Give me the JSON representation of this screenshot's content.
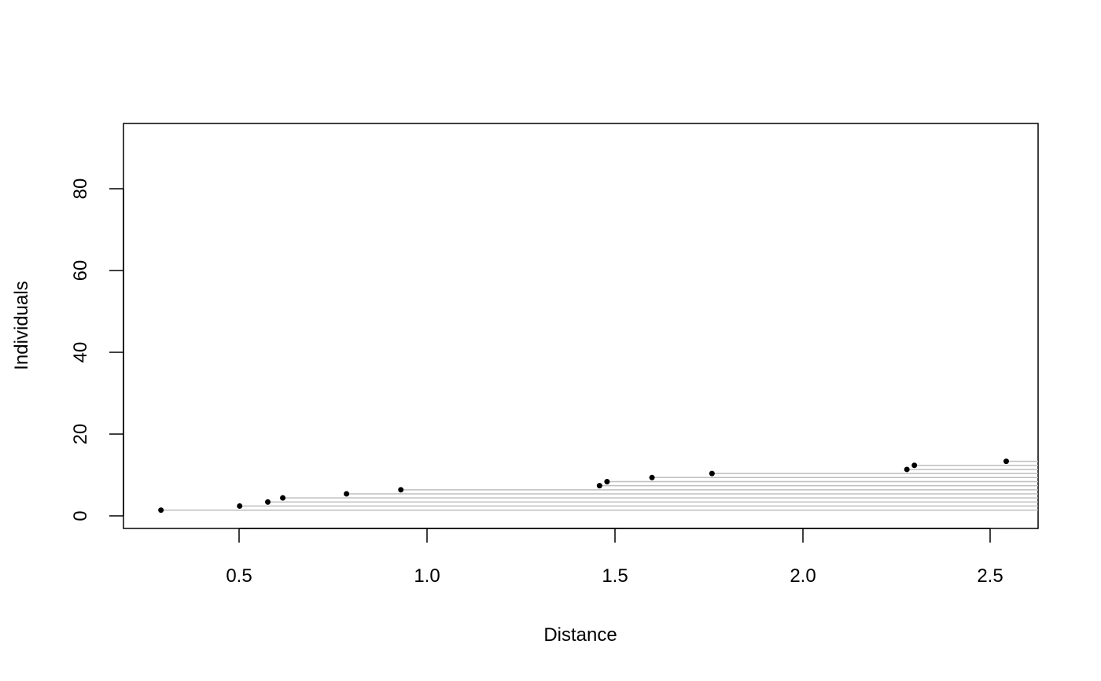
{
  "chart_data": {
    "type": "scatter",
    "title": "",
    "xlabel": "Distance",
    "ylabel": "Individuals",
    "xlim": [
      0.18,
      2.62
    ],
    "ylim": [
      -3.5,
      96
    ],
    "x_ticks": [
      "0.5",
      "1.0",
      "1.5",
      "2.0",
      "2.5"
    ],
    "y_ticks": [
      "0",
      "20",
      "40",
      "60",
      "80"
    ],
    "grid": false,
    "legend": "none",
    "point_color": "#000000",
    "line_color": "#bebebe",
    "points": [
      {
        "x": 0.28,
        "y": 1
      },
      {
        "x": 0.49,
        "y": 2
      },
      {
        "x": 0.565,
        "y": 3
      },
      {
        "x": 0.605,
        "y": 4
      },
      {
        "x": 0.775,
        "y": 5
      },
      {
        "x": 0.92,
        "y": 6
      },
      {
        "x": 1.45,
        "y": 7
      },
      {
        "x": 1.47,
        "y": 8
      },
      {
        "x": 1.59,
        "y": 9
      },
      {
        "x": 1.75,
        "y": 10
      },
      {
        "x": 2.27,
        "y": 11
      },
      {
        "x": 2.29,
        "y": 12
      },
      {
        "x": 2.535,
        "y": 13
      }
    ]
  }
}
